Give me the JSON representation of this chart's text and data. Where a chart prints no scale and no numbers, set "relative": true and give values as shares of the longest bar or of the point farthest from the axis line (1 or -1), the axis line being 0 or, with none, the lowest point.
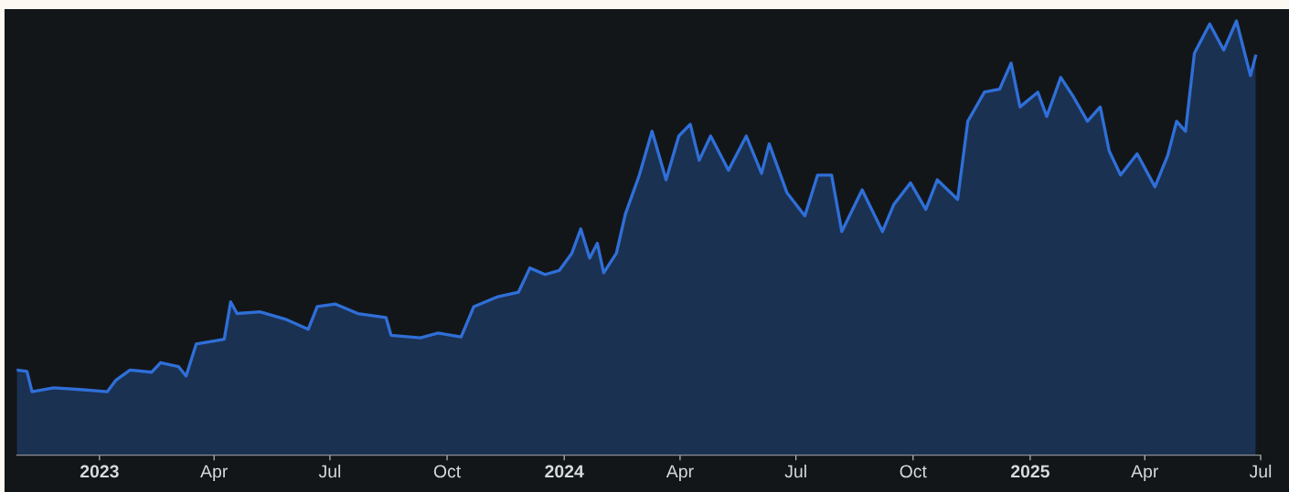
{
  "chart_data": {
    "type": "area",
    "relative": true,
    "marker": "none",
    "line_style": "solid",
    "x": [
      "2022-10-28",
      "2022-11-05",
      "2022-11-09",
      "2022-11-26",
      "2022-12-17",
      "2023-01-07",
      "2023-01-14",
      "2023-01-25",
      "2023-02-11",
      "2023-02-18",
      "2023-03-04",
      "2023-03-10",
      "2023-03-18",
      "2023-04-09",
      "2023-04-14",
      "2023-04-19",
      "2023-05-07",
      "2023-05-28",
      "2023-06-14",
      "2023-06-21",
      "2023-07-05",
      "2023-07-23",
      "2023-08-14",
      "2023-08-18",
      "2023-09-10",
      "2023-09-24",
      "2023-10-12",
      "2023-10-22",
      "2023-11-09",
      "2023-11-26",
      "2023-12-05",
      "2023-12-17",
      "2023-12-28",
      "2024-01-07",
      "2024-01-14",
      "2024-01-21",
      "2024-01-27",
      "2024-02-01",
      "2024-02-11",
      "2024-02-18",
      "2024-02-29",
      "2024-03-10",
      "2024-03-21",
      "2024-03-31",
      "2024-04-09",
      "2024-04-16",
      "2024-04-25",
      "2024-05-09",
      "2024-05-23",
      "2024-06-04",
      "2024-06-10",
      "2024-06-24",
      "2024-07-08",
      "2024-07-18",
      "2024-07-29",
      "2024-08-06",
      "2024-08-22",
      "2024-09-07",
      "2024-09-16",
      "2024-09-29",
      "2024-10-11",
      "2024-10-20",
      "2024-11-05",
      "2024-11-13",
      "2024-11-26",
      "2024-12-08",
      "2024-12-17",
      "2024-12-24",
      "2025-01-07",
      "2025-01-14",
      "2025-01-25",
      "2025-02-04",
      "2025-02-15",
      "2025-02-25",
      "2025-03-04",
      "2025-03-13",
      "2025-03-26",
      "2025-04-09",
      "2025-04-19",
      "2025-04-26",
      "2025-05-03",
      "2025-05-10",
      "2025-05-22",
      "2025-06-02",
      "2025-06-12",
      "2025-06-23",
      "2025-06-27"
    ],
    "series": [
      {
        "color": "#2f6fd8",
        "values": [
          0.196,
          0.193,
          0.146,
          0.155,
          0.151,
          0.146,
          0.173,
          0.196,
          0.191,
          0.213,
          0.204,
          0.182,
          0.256,
          0.267,
          0.353,
          0.326,
          0.33,
          0.312,
          0.29,
          0.342,
          0.348,
          0.326,
          0.317,
          0.276,
          0.27,
          0.281,
          0.272,
          0.342,
          0.364,
          0.375,
          0.431,
          0.416,
          0.425,
          0.465,
          0.521,
          0.454,
          0.488,
          0.42,
          0.465,
          0.555,
          0.645,
          0.746,
          0.634,
          0.735,
          0.762,
          0.679,
          0.735,
          0.656,
          0.735,
          0.649,
          0.717,
          0.604,
          0.551,
          0.645,
          0.645,
          0.515,
          0.611,
          0.515,
          0.578,
          0.627,
          0.566,
          0.634,
          0.589,
          0.769,
          0.836,
          0.843,
          0.903,
          0.802,
          0.836,
          0.78,
          0.87,
          0.825,
          0.769,
          0.802,
          0.701,
          0.645,
          0.694,
          0.618,
          0.69,
          0.769,
          0.746,
          0.926,
          0.993,
          0.933,
          1.0,
          0.874,
          0.919
        ]
      }
    ],
    "xlim": [
      "2022-10-28",
      "2025-07-01"
    ],
    "xticks": [
      {
        "value": "2023-01-01",
        "label": "2023"
      },
      {
        "value": "2023-04-01",
        "label": "Apr"
      },
      {
        "value": "2023-07-01",
        "label": "Jul"
      },
      {
        "value": "2023-10-01",
        "label": "Oct"
      },
      {
        "value": "2024-01-01",
        "label": "2024"
      },
      {
        "value": "2024-04-01",
        "label": "Apr"
      },
      {
        "value": "2024-07-01",
        "label": "Jul"
      },
      {
        "value": "2024-10-01",
        "label": "Oct"
      },
      {
        "value": "2025-01-01",
        "label": "2025"
      },
      {
        "value": "2025-04-01",
        "label": "Apr"
      },
      {
        "value": "2025-07-01",
        "label": "Jul"
      }
    ]
  }
}
